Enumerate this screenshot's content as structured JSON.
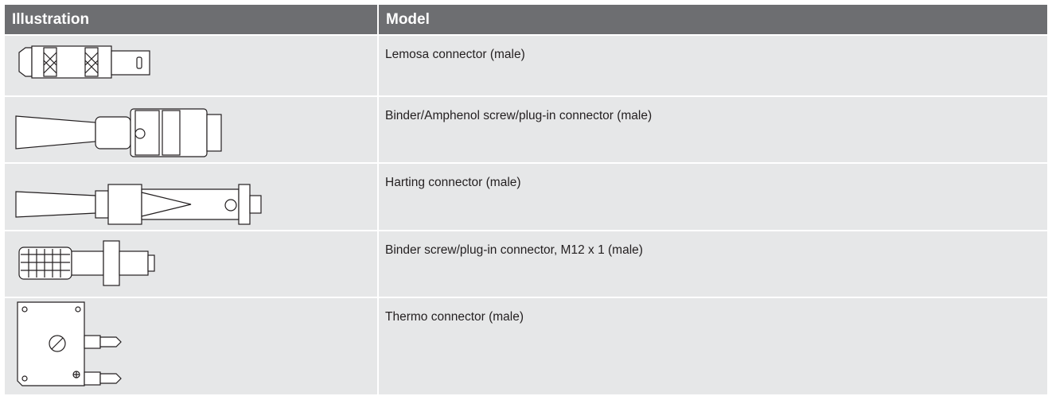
{
  "table": {
    "headers": [
      "Illustration",
      "Model"
    ],
    "rows": [
      "Lemosa connector (male)",
      "Binder/Amphenol screw/plug-in connector (male)",
      "Harting connector (male)",
      "Binder screw/plug-in connector, M12 x 1 (male)",
      "Thermo connector (male)"
    ]
  }
}
